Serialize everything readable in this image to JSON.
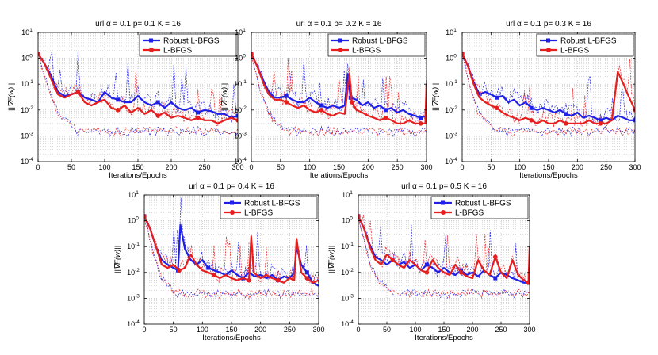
{
  "figure": {
    "xlabel": "Iterations/Epochs",
    "ylabel": "||∇F(w)||",
    "legend": [
      "Robust L-BFGS",
      "L-BFGS"
    ],
    "colors": {
      "robust": "#1f1fe6",
      "lbfgs": "#e61e1e",
      "grid": "#b4b4b4"
    }
  },
  "chart_data": [
    {
      "type": "line",
      "title": "url α = 0.1   p= 0.1   K = 16",
      "xlabel": "Iterations/Epochs",
      "ylabel": "||∇F(w)||",
      "xlim": [
        0,
        300
      ],
      "ylim": [
        0.0001,
        10
      ],
      "yscale": "log",
      "xticks": [
        0,
        50,
        100,
        150,
        200,
        250,
        300
      ],
      "yticks": [
        "10^-4",
        "10^-3",
        "10^-2",
        "10^-1",
        "10^0",
        "10^1"
      ],
      "legend_position": "top-right",
      "series": [
        {
          "name": "Robust L-BFGS",
          "color": "#1f1fe6",
          "marker": "square",
          "x": [
            0,
            10,
            20,
            30,
            40,
            50,
            60,
            70,
            80,
            90,
            100,
            110,
            120,
            130,
            140,
            150,
            160,
            170,
            180,
            190,
            200,
            210,
            220,
            230,
            240,
            250,
            260,
            270,
            280,
            290,
            300
          ],
          "y": [
            1.5,
            0.6,
            0.2,
            0.05,
            0.035,
            0.04,
            0.05,
            0.03,
            0.025,
            0.02,
            0.05,
            0.03,
            0.025,
            0.02,
            0.02,
            0.035,
            0.02,
            0.015,
            0.02,
            0.012,
            0.02,
            0.012,
            0.01,
            0.012,
            0.008,
            0.01,
            0.009,
            0.007,
            0.007,
            0.005,
            0.006
          ]
        },
        {
          "name": "L-BFGS",
          "color": "#e61e1e",
          "marker": "circle",
          "x": [
            0,
            10,
            20,
            30,
            40,
            50,
            60,
            70,
            80,
            90,
            100,
            110,
            120,
            130,
            140,
            150,
            160,
            170,
            180,
            190,
            200,
            210,
            220,
            230,
            240,
            250,
            260,
            270,
            280,
            290,
            300
          ],
          "y": [
            1.5,
            0.6,
            0.15,
            0.04,
            0.03,
            0.04,
            0.05,
            0.02,
            0.015,
            0.02,
            0.025,
            0.012,
            0.01,
            0.015,
            0.008,
            0.012,
            0.007,
            0.01,
            0.006,
            0.008,
            0.005,
            0.006,
            0.005,
            0.004,
            0.005,
            0.004,
            0.004,
            0.003,
            0.004,
            0.005,
            0.004
          ]
        }
      ]
    },
    {
      "type": "line",
      "title": "url α = 0.1   p= 0.2   K = 16",
      "xlabel": "Iterations/Epochs",
      "ylabel": "||∇F(w)||",
      "xlim": [
        0,
        300
      ],
      "ylim": [
        0.0001,
        10
      ],
      "yscale": "log",
      "xticks": [
        0,
        50,
        100,
        150,
        200,
        250,
        300
      ],
      "yticks": [
        "10^-4",
        "10^-3",
        "10^-2",
        "10^-1",
        "10^0",
        "10^1"
      ],
      "legend_position": "top-right",
      "series": [
        {
          "name": "Robust L-BFGS",
          "color": "#1f1fe6",
          "marker": "square",
          "x": [
            0,
            10,
            20,
            30,
            40,
            50,
            60,
            70,
            80,
            90,
            100,
            110,
            120,
            130,
            140,
            150,
            160,
            165,
            170,
            180,
            190,
            200,
            210,
            220,
            230,
            240,
            250,
            260,
            270,
            280,
            290,
            300
          ],
          "y": [
            1.5,
            0.5,
            0.15,
            0.05,
            0.03,
            0.03,
            0.035,
            0.025,
            0.02,
            0.02,
            0.03,
            0.02,
            0.015,
            0.012,
            0.015,
            0.012,
            0.015,
            0.25,
            0.03,
            0.025,
            0.015,
            0.02,
            0.012,
            0.015,
            0.01,
            0.012,
            0.008,
            0.01,
            0.007,
            0.006,
            0.005,
            0.006
          ]
        },
        {
          "name": "L-BFGS",
          "color": "#e61e1e",
          "marker": "circle",
          "x": [
            0,
            10,
            20,
            30,
            40,
            50,
            60,
            70,
            80,
            90,
            100,
            110,
            120,
            130,
            140,
            150,
            160,
            168,
            172,
            180,
            190,
            200,
            210,
            220,
            230,
            240,
            250,
            260,
            270,
            280,
            290,
            298,
            300
          ],
          "y": [
            1.5,
            0.5,
            0.12,
            0.04,
            0.025,
            0.025,
            0.02,
            0.015,
            0.012,
            0.015,
            0.01,
            0.008,
            0.01,
            0.007,
            0.006,
            0.008,
            0.007,
            0.25,
            0.02,
            0.01,
            0.008,
            0.006,
            0.005,
            0.004,
            0.005,
            0.004,
            0.003,
            0.003,
            0.004,
            0.003,
            0.003,
            0.003,
            0.1
          ]
        }
      ]
    },
    {
      "type": "line",
      "title": "url α = 0.1   p= 0.3   K = 16",
      "xlabel": "Iterations/Epochs",
      "ylabel": "||∇F(w)||",
      "xlim": [
        0,
        300
      ],
      "ylim": [
        0.0001,
        10
      ],
      "yscale": "log",
      "xticks": [
        0,
        50,
        100,
        150,
        200,
        250,
        300
      ],
      "yticks": [
        "10^-4",
        "10^-3",
        "10^-2",
        "10^-1",
        "10^0",
        "10^1"
      ],
      "legend_position": "top-right",
      "series": [
        {
          "name": "Robust L-BFGS",
          "color": "#1f1fe6",
          "marker": "square",
          "x": [
            0,
            10,
            20,
            30,
            40,
            50,
            60,
            70,
            80,
            90,
            100,
            110,
            120,
            130,
            140,
            150,
            160,
            170,
            180,
            190,
            200,
            210,
            220,
            230,
            240,
            250,
            260,
            270,
            280,
            290,
            300
          ],
          "y": [
            1.5,
            0.5,
            0.12,
            0.04,
            0.05,
            0.04,
            0.03,
            0.035,
            0.02,
            0.025,
            0.015,
            0.02,
            0.012,
            0.01,
            0.012,
            0.01,
            0.008,
            0.01,
            0.007,
            0.006,
            0.008,
            0.005,
            0.006,
            0.005,
            0.004,
            0.005,
            0.004,
            0.006,
            0.005,
            0.004,
            0.004
          ]
        },
        {
          "name": "L-BFGS",
          "color": "#e61e1e",
          "marker": "circle",
          "x": [
            0,
            10,
            20,
            30,
            40,
            50,
            60,
            70,
            80,
            90,
            100,
            110,
            120,
            130,
            140,
            150,
            160,
            170,
            180,
            190,
            200,
            210,
            220,
            230,
            240,
            250,
            260,
            270,
            280,
            290,
            300
          ],
          "y": [
            1.5,
            0.5,
            0.1,
            0.03,
            0.02,
            0.015,
            0.012,
            0.008,
            0.006,
            0.005,
            0.004,
            0.005,
            0.004,
            0.003,
            0.004,
            0.003,
            0.003,
            0.004,
            0.003,
            0.003,
            0.003,
            0.003,
            0.004,
            0.003,
            0.003,
            0.003,
            0.004,
            0.3,
            0.1,
            0.03,
            0.01
          ]
        }
      ]
    },
    {
      "type": "line",
      "title": "url α = 0.1   p= 0.4   K = 16",
      "xlabel": "Iterations/Epochs",
      "ylabel": "||∇F(w)||",
      "xlim": [
        0,
        300
      ],
      "ylim": [
        0.0001,
        10
      ],
      "yscale": "log",
      "xticks": [
        0,
        50,
        100,
        150,
        200,
        250,
        300
      ],
      "yticks": [
        "10^-4",
        "10^-3",
        "10^-2",
        "10^-1",
        "10^0",
        "10^1"
      ],
      "legend_position": "top-right",
      "series": [
        {
          "name": "Robust L-BFGS",
          "color": "#1f1fe6",
          "marker": "square",
          "x": [
            0,
            10,
            20,
            30,
            40,
            50,
            58,
            62,
            70,
            80,
            90,
            100,
            110,
            120,
            130,
            140,
            150,
            160,
            170,
            180,
            190,
            200,
            210,
            220,
            230,
            240,
            250,
            258,
            262,
            270,
            280,
            290,
            300
          ],
          "y": [
            1.5,
            0.5,
            0.1,
            0.03,
            0.02,
            0.015,
            0.012,
            0.7,
            0.08,
            0.03,
            0.02,
            0.03,
            0.015,
            0.012,
            0.01,
            0.008,
            0.012,
            0.008,
            0.006,
            0.01,
            0.007,
            0.008,
            0.006,
            0.008,
            0.005,
            0.007,
            0.006,
            0.01,
            0.1,
            0.02,
            0.01,
            0.004,
            0.003
          ]
        },
        {
          "name": "L-BFGS",
          "color": "#e61e1e",
          "marker": "circle",
          "x": [
            0,
            10,
            20,
            30,
            40,
            50,
            60,
            70,
            80,
            90,
            100,
            110,
            120,
            130,
            140,
            150,
            160,
            170,
            180,
            184,
            188,
            200,
            210,
            220,
            230,
            240,
            250,
            258,
            262,
            270,
            280,
            290,
            300
          ],
          "y": [
            1.5,
            0.5,
            0.1,
            0.02,
            0.015,
            0.02,
            0.012,
            0.015,
            0.05,
            0.02,
            0.012,
            0.01,
            0.008,
            0.006,
            0.008,
            0.006,
            0.005,
            0.006,
            0.005,
            0.25,
            0.01,
            0.006,
            0.008,
            0.006,
            0.005,
            0.004,
            0.006,
            0.005,
            0.2,
            0.01,
            0.006,
            0.004,
            0.005
          ]
        }
      ]
    },
    {
      "type": "line",
      "title": "url α = 0.1   p= 0.5   K = 16",
      "xlabel": "Iterations/Epochs",
      "ylabel": "||∇F(w)||",
      "xlim": [
        0,
        300
      ],
      "ylim": [
        0.0001,
        10
      ],
      "yscale": "log",
      "xticks": [
        0,
        50,
        100,
        150,
        200,
        250,
        300
      ],
      "yticks": [
        "10^-4",
        "10^-3",
        "10^-2",
        "10^-1",
        "10^0",
        "10^1"
      ],
      "legend_position": "top-right",
      "series": [
        {
          "name": "Robust L-BFGS",
          "color": "#1f1fe6",
          "marker": "square",
          "x": [
            0,
            10,
            20,
            30,
            40,
            50,
            60,
            70,
            80,
            90,
            100,
            110,
            120,
            130,
            140,
            150,
            160,
            170,
            180,
            190,
            200,
            210,
            220,
            230,
            240,
            250,
            260,
            270,
            280,
            290,
            300
          ],
          "y": [
            1.5,
            0.5,
            0.12,
            0.04,
            0.03,
            0.02,
            0.03,
            0.02,
            0.025,
            0.015,
            0.02,
            0.012,
            0.02,
            0.015,
            0.01,
            0.015,
            0.01,
            0.008,
            0.012,
            0.008,
            0.01,
            0.007,
            0.012,
            0.008,
            0.006,
            0.01,
            0.008,
            0.006,
            0.005,
            0.004,
            0.004
          ]
        },
        {
          "name": "L-BFGS",
          "color": "#e61e1e",
          "marker": "circle",
          "x": [
            0,
            10,
            20,
            30,
            40,
            50,
            60,
            70,
            80,
            90,
            100,
            110,
            120,
            130,
            140,
            150,
            160,
            170,
            180,
            190,
            200,
            210,
            220,
            230,
            240,
            250,
            260,
            270,
            280,
            290,
            298,
            300
          ],
          "y": [
            1.5,
            0.5,
            0.1,
            0.03,
            0.02,
            0.05,
            0.03,
            0.02,
            0.015,
            0.03,
            0.02,
            0.012,
            0.01,
            0.03,
            0.015,
            0.01,
            0.008,
            0.02,
            0.01,
            0.007,
            0.006,
            0.03,
            0.012,
            0.008,
            0.04,
            0.01,
            0.006,
            0.03,
            0.008,
            0.005,
            0.004,
            0.1
          ]
        }
      ]
    }
  ]
}
